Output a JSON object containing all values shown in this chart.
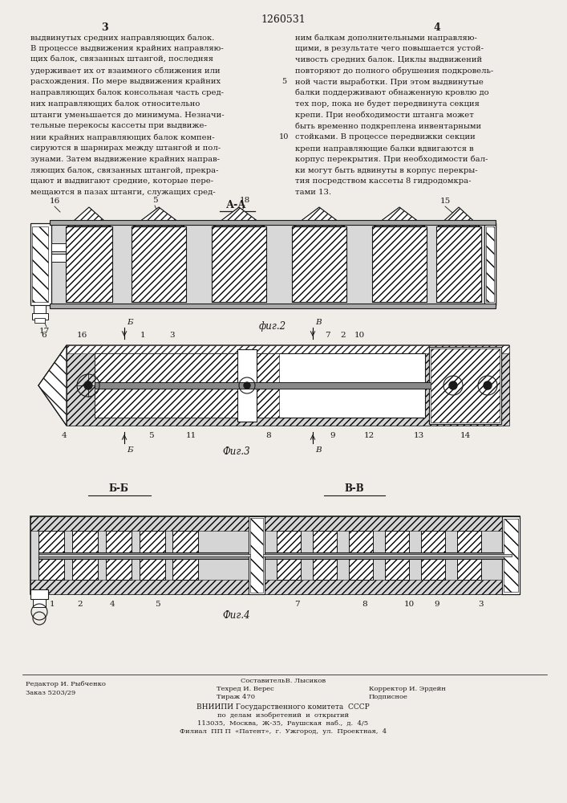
{
  "page_number_top": "1260531",
  "col_left_number": "3",
  "col_right_number": "4",
  "background_color": "#f0ede8",
  "text_color": "#1a1a1a",
  "left_text_lines": [
    "выдвинутых средних направляющих балок.",
    "В процессе выдвижения крайних направляю-",
    "щих балок, связанных штангой, последняя",
    "удерживает их от взаимного сближения или",
    "расхождения. По мере выдвижения крайних",
    "направляющих балок консольная часть сред-",
    "них направляющих балок относительно",
    "штанги уменьшается до минимума. Незначи-",
    "тельные перекосы кассеты при выдвиже-",
    "нии крайних направляющих балок компен-",
    "сируются в шарнирах между штангой и пол-",
    "зунами. Затем выдвижение крайних направ-",
    "ляющих балок, связанных штангой, прекра-",
    "щают и выдвигают средние, которые пере-",
    "мещаются в пазах штанги, служащих сред-"
  ],
  "right_text_lines": [
    "ним балкам дополнительными направляю-",
    "щими, в результате чего повышается устой-",
    "чивость средних балок. Циклы выдвижений",
    "повторяют до полного обрушения подкровель-",
    "ной части выработки. При этом выдвинутые",
    "балки поддерживают обнаженную кровлю до",
    "тех пор, пока не будет передвинута секция",
    "крепи. При необходимости штанга может",
    "быть временно подкреплена инвентарными",
    "стойками. В процессе передвижки секции",
    "крепи направляющие балки вдвигаются в",
    "корпус перекрытия. При необходимости бал-",
    "ки могут быть вдвинуты в корпус перекры-",
    "тия посредством кассеты 8 гидродомкра-",
    "тами 13."
  ],
  "line_number_5": "5",
  "line_number_10": "10",
  "fig2_section_label": "А-А",
  "fig2_caption": "фиг.2",
  "fig3_caption": "Фиг.3",
  "fig4_caption": "Фиг.4",
  "fig4_left_label": "Б-Б",
  "fig4_right_label": "В-В",
  "footer_editor": "Редактор И. Рыбченко",
  "footer_order": "Заказ 5203/29",
  "footer_composer": "СоставительВ. Лысиков",
  "footer_techred": "Техред И. Верес",
  "footer_corrector": "Корректор И. Эрдейн",
  "footer_tirazh": "Тираж 470",
  "footer_podpisnoe": "Подписное",
  "footer_vniipи": "ВНИИПИ Государственного комитета  СССР",
  "footer_po": "по  делам  изобретений  и  открытий",
  "footer_addr": "113035,  Москва,  Ж-35,  Раушская  наб.,  д.  4/5",
  "footer_filial": "Филиал  ПП П  «Патент»,  г.  Ужгород,  ул.  Проектная,  4"
}
